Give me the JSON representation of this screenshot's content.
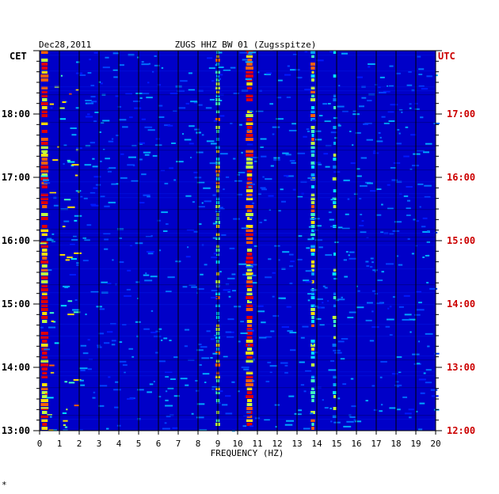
{
  "chart_data": {
    "type": "heatmap",
    "date": "Dec28,2011",
    "title": "ZUGS HHZ BW 01 (Zugsspitze)",
    "left_timezone": "CET",
    "right_timezone": "UTC",
    "xlabel": "FREQUENCY (HZ)",
    "xlim": [
      0,
      20
    ],
    "x_ticks": [
      "0",
      "1",
      "2",
      "3",
      "4",
      "5",
      "6",
      "7",
      "8",
      "9",
      "10",
      "11",
      "12",
      "13",
      "14",
      "15",
      "16",
      "17",
      "18",
      "19",
      "20"
    ],
    "left_y_ticks": [
      {
        "hour": 13,
        "label": "13:00"
      },
      {
        "hour": 14,
        "label": "14:00"
      },
      {
        "hour": 15,
        "label": "15:00"
      },
      {
        "hour": 16,
        "label": "16:00"
      },
      {
        "hour": 17,
        "label": "17:00"
      },
      {
        "hour": 18,
        "label": "18:00"
      }
    ],
    "right_y_ticks": [
      {
        "hour": 13,
        "label": "12:00"
      },
      {
        "hour": 14,
        "label": "13:00"
      },
      {
        "hour": 15,
        "label": "14:00"
      },
      {
        "hour": 16,
        "label": "15:00"
      },
      {
        "hour": 17,
        "label": "16:00"
      },
      {
        "hour": 18,
        "label": "17:00"
      }
    ],
    "ylim_cet_hours": [
      13.0,
      19.0
    ],
    "grid": true,
    "background_color": "#0000c8",
    "grid_color": "#000000",
    "label_color": "#000000",
    "utc_color": "#cc0000",
    "bright_bands_hz": [
      {
        "freq": 0.25,
        "intensity": "high"
      },
      {
        "freq": 9.0,
        "intensity": "medium"
      },
      {
        "freq": 10.6,
        "intensity": "high"
      },
      {
        "freq": 13.8,
        "intensity": "medium"
      },
      {
        "freq": 14.9,
        "intensity": "low"
      }
    ],
    "footer_mark": "*"
  }
}
